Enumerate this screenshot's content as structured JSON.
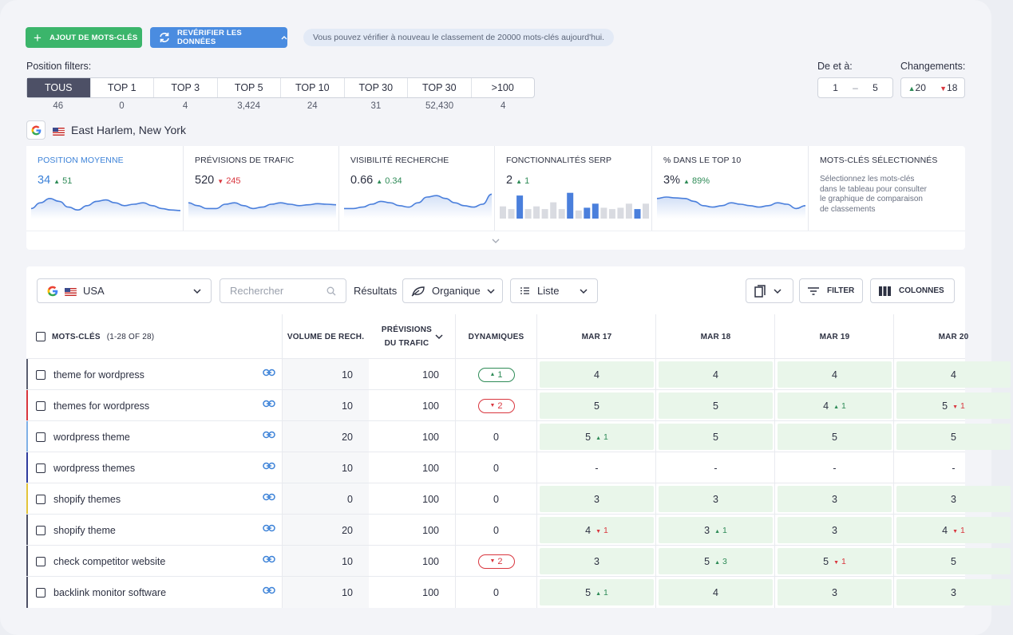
{
  "toolbar": {
    "add_keywords": "AJOUT DE MOTS-CLÉS",
    "recheck": "REVÉRIFIER LES DONNÉES",
    "info": "Vous pouvez vérifier à nouveau le classement de 20000 mots-clés aujourd'hui."
  },
  "filters": {
    "label": "Position filters:",
    "tabs": [
      {
        "label": "TOUS",
        "count": "46",
        "active": true
      },
      {
        "label": "TOP 1",
        "count": "0"
      },
      {
        "label": "TOP 3",
        "count": "4"
      },
      {
        "label": "TOP 5",
        "count": "3,424"
      },
      {
        "label": "TOP 10",
        "count": "24"
      },
      {
        "label": "TOP 30",
        "count": "31"
      },
      {
        "label": "TOP 30",
        "count": "52,430"
      },
      {
        "label": ">100",
        "count": "4"
      }
    ],
    "range_label": "De et à:",
    "range_from": "1",
    "range_sep": "–",
    "range_to": "5",
    "changes_label": "Changements:",
    "changes_up": "20",
    "changes_down": "18"
  },
  "location": {
    "name": "East Harlem, New York"
  },
  "metrics": [
    {
      "title": "POSITION MOYENNE",
      "value": "34",
      "delta": "51",
      "dir": "up"
    },
    {
      "title": "PRÉVISIONS DE TRAFIC",
      "value": "520",
      "delta": "245",
      "dir": "down"
    },
    {
      "title": "VISIBILITÉ RECHERCHE",
      "value": "0.66",
      "delta": "0.34",
      "dir": "up"
    },
    {
      "title": "FONCTIONNALITÉS SERP",
      "value": "2",
      "delta": "1",
      "dir": "up"
    },
    {
      "title": "% DANS LE TOP 10",
      "value": "3%",
      "delta": "89%",
      "dir": "up"
    },
    {
      "title": "MOTS-CLÉS SÉLECTIONNÉS",
      "desc": "Sélectionnez les mots-clés dans le tableau pour consulter le graphique de comparaison de classements"
    }
  ],
  "table_toolbar": {
    "country": "USA",
    "search_placeholder": "Rechercher",
    "results_label": "Résultats",
    "type": "Organique",
    "view": "Liste",
    "filter": "FILTER",
    "columns": "COLONNES"
  },
  "table": {
    "headers": {
      "keyword": "MOTS-CLÉS",
      "keyword_count": "(1-28 OF 28)",
      "volume": "VOLUME DE RECH.",
      "forecast_1": "PRÉVISIONS",
      "forecast_2": "DU TRAFIC",
      "dynamics": "DYNAMIQUES",
      "dates": [
        "MAR 17",
        "MAR 18",
        "MAR 19",
        "MAR 20"
      ]
    },
    "rows": [
      {
        "kw": "theme for wordpress",
        "color": "#5a5e70",
        "vol": "10",
        "prev": "100",
        "dyn": "1",
        "dyn_dir": "up",
        "pos": [
          {
            "v": "4"
          },
          {
            "v": "4"
          },
          {
            "v": "4"
          },
          {
            "v": "4"
          }
        ]
      },
      {
        "kw": "themes for wordpress",
        "color": "#d9363e",
        "vol": "10",
        "prev": "100",
        "dyn": "2",
        "dyn_dir": "down",
        "pos": [
          {
            "v": "5"
          },
          {
            "v": "5"
          },
          {
            "v": "4",
            "c": "1",
            "d": "up"
          },
          {
            "v": "5",
            "c": "1",
            "d": "down"
          }
        ]
      },
      {
        "kw": "wordpress theme",
        "color": "#7fb0e6",
        "vol": "20",
        "prev": "100",
        "dyn": "0",
        "dyn_dir": "none",
        "pos": [
          {
            "v": "5",
            "c": "1",
            "d": "up"
          },
          {
            "v": "5"
          },
          {
            "v": "5"
          },
          {
            "v": "5"
          }
        ]
      },
      {
        "kw": "wordpress themes",
        "color": "#2e3c9e",
        "vol": "10",
        "prev": "100",
        "dyn": "0",
        "dyn_dir": "none",
        "pos": [
          {
            "v": "-",
            "e": true
          },
          {
            "v": "-",
            "e": true
          },
          {
            "v": "-",
            "e": true
          },
          {
            "v": "-",
            "e": true
          }
        ]
      },
      {
        "kw": "shopify themes",
        "color": "#e3c43a",
        "vol": "0",
        "prev": "100",
        "dyn": "0",
        "dyn_dir": "none",
        "pos": [
          {
            "v": "3"
          },
          {
            "v": "3"
          },
          {
            "v": "3"
          },
          {
            "v": "3"
          }
        ]
      },
      {
        "kw": "shopify theme",
        "color": "#4d5066",
        "vol": "20",
        "prev": "100",
        "dyn": "0",
        "dyn_dir": "none",
        "pos": [
          {
            "v": "4",
            "c": "1",
            "d": "down"
          },
          {
            "v": "3",
            "c": "1",
            "d": "up"
          },
          {
            "v": "3"
          },
          {
            "v": "4",
            "c": "1",
            "d": "down"
          }
        ]
      },
      {
        "kw": "check competitor website",
        "color": "#4d5066",
        "vol": "10",
        "prev": "100",
        "dyn": "2",
        "dyn_dir": "down",
        "pos": [
          {
            "v": "3"
          },
          {
            "v": "5",
            "c": "3",
            "d": "up"
          },
          {
            "v": "5",
            "c": "1",
            "d": "down"
          },
          {
            "v": "5"
          }
        ]
      },
      {
        "kw": "backlink monitor software",
        "color": "#4d5066",
        "vol": "10",
        "prev": "100",
        "dyn": "0",
        "dyn_dir": "none",
        "pos": [
          {
            "v": "5",
            "c": "1",
            "d": "up"
          },
          {
            "v": "4"
          },
          {
            "v": "3"
          },
          {
            "v": "3"
          }
        ]
      }
    ]
  },
  "colors": {
    "accent_blue": "#3c82d8",
    "green": "#3bb56b",
    "up": "#2e8b57",
    "down": "#d9363e",
    "chart": "#4a7fdc"
  }
}
